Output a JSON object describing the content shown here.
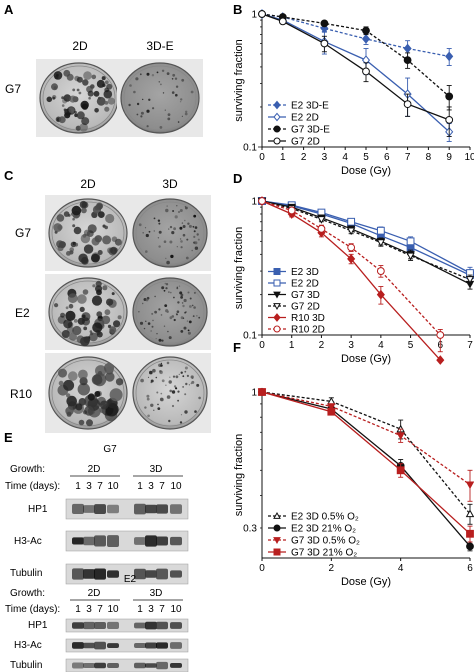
{
  "panels": {
    "A": {
      "letter": "A",
      "col_labels": [
        "2D",
        "3D-E"
      ],
      "row_labels": [
        "G7"
      ]
    },
    "C": {
      "letter": "C",
      "col_labels": [
        "2D",
        "3D"
      ],
      "row_labels": [
        "G7",
        "E2",
        "R10"
      ]
    },
    "E": {
      "letter": "E",
      "blots": [
        {
          "cell_line": "G7",
          "growth_label": "Growth:",
          "time_label": "Time (days):",
          "groups": [
            "2D",
            "3D"
          ],
          "times": [
            "1",
            "3",
            "7",
            "10",
            "1",
            "3",
            "7",
            "10"
          ],
          "proteins": [
            "HP1",
            "H3-Ac",
            "Tubulin"
          ]
        },
        {
          "cell_line": "E2",
          "growth_label": "Growth:",
          "time_label": "Time (days):",
          "groups": [
            "2D",
            "3D"
          ],
          "times": [
            "1",
            "3",
            "7",
            "10",
            "1",
            "3",
            "7",
            "10"
          ],
          "proteins": [
            "HP1",
            "H3-Ac",
            "Tubulin"
          ]
        }
      ]
    }
  },
  "chart_data": [
    {
      "panel": "B",
      "type": "line",
      "xlabel": "Dose (Gy)",
      "ylabel": "surviving fraction",
      "xlim": [
        0,
        10
      ],
      "ylim": [
        0.1,
        1
      ],
      "yscale": "log",
      "xticks": [
        0,
        1,
        2,
        3,
        4,
        5,
        6,
        7,
        8,
        9,
        10
      ],
      "yticks": [
        {
          "v": 0.1,
          "label": "0.1"
        },
        {
          "v": 1,
          "label": "1"
        }
      ],
      "legend_position": "bottom-left",
      "series": [
        {
          "name": "E2 3D-E",
          "color": "#3a5fb0",
          "marker": "diamond-filled",
          "dash": true,
          "x": [
            0,
            1,
            3,
            5,
            7,
            9
          ],
          "y": [
            1.0,
            0.95,
            0.78,
            0.65,
            0.55,
            0.48
          ],
          "err": [
            0,
            0.03,
            0.05,
            0.06,
            0.08,
            0.07
          ]
        },
        {
          "name": "E2 2D",
          "color": "#3a5fb0",
          "marker": "diamond-open",
          "dash": false,
          "x": [
            0,
            1,
            3,
            5,
            7,
            9
          ],
          "y": [
            1.0,
            0.9,
            0.62,
            0.45,
            0.25,
            0.13
          ],
          "err": [
            0,
            0.05,
            0.12,
            0.1,
            0.08,
            0.02
          ]
        },
        {
          "name": "G7 3D-E",
          "color": "#111111",
          "marker": "circle-filled",
          "dash": true,
          "x": [
            0,
            1,
            3,
            5,
            7,
            9
          ],
          "y": [
            1.0,
            0.95,
            0.85,
            0.75,
            0.45,
            0.24
          ],
          "err": [
            0,
            0.02,
            0.03,
            0.05,
            0.06,
            0.05
          ]
        },
        {
          "name": "G7 2D",
          "color": "#111111",
          "marker": "circle-open",
          "dash": false,
          "x": [
            0,
            1,
            3,
            5,
            7,
            9
          ],
          "y": [
            1.0,
            0.88,
            0.6,
            0.37,
            0.21,
            0.16
          ],
          "err": [
            0,
            0.04,
            0.08,
            0.06,
            0.04,
            0.04
          ]
        }
      ]
    },
    {
      "panel": "D",
      "type": "line",
      "xlabel": "Dose (Gy)",
      "ylabel": "surviving fraction",
      "xlim": [
        0,
        7
      ],
      "ylim": [
        0.1,
        1
      ],
      "yscale": "log",
      "xticks": [
        0,
        1,
        2,
        3,
        4,
        5,
        6,
        7
      ],
      "yticks": [
        {
          "v": 0.1,
          "label": "0.1"
        },
        {
          "v": 1,
          "label": "1"
        }
      ],
      "legend_position": "bottom-left",
      "series": [
        {
          "name": "E2 3D",
          "color": "#3a5fb0",
          "marker": "square-filled",
          "dash": false,
          "x": [
            0,
            1,
            2,
            3,
            4,
            5,
            7
          ],
          "y": [
            1.0,
            0.92,
            0.8,
            0.68,
            0.55,
            0.45,
            0.28
          ],
          "err": [
            0,
            0.02,
            0.03,
            0.03,
            0.03,
            0.03,
            0.02
          ]
        },
        {
          "name": "E2 2D",
          "color": "#3a5fb0",
          "marker": "square-open",
          "dash": false,
          "x": [
            0,
            1,
            2,
            3,
            4,
            5,
            7
          ],
          "y": [
            1.0,
            0.93,
            0.82,
            0.7,
            0.6,
            0.5,
            0.29
          ],
          "err": [
            0,
            0.03,
            0.03,
            0.04,
            0.04,
            0.04,
            0.03
          ]
        },
        {
          "name": "G7 3D",
          "color": "#111111",
          "marker": "tri-down-filled",
          "dash": false,
          "x": [
            0,
            1,
            2,
            3,
            4,
            5,
            7
          ],
          "y": [
            1.0,
            0.9,
            0.75,
            0.62,
            0.5,
            0.4,
            0.24
          ],
          "err": [
            0,
            0.02,
            0.03,
            0.03,
            0.03,
            0.03,
            0.02
          ]
        },
        {
          "name": "G7 2D",
          "color": "#111111",
          "marker": "tri-down-open",
          "dash": true,
          "x": [
            0,
            1,
            2,
            3,
            4,
            5,
            7
          ],
          "y": [
            1.0,
            0.88,
            0.73,
            0.6,
            0.49,
            0.39,
            0.26
          ],
          "err": [
            0,
            0.02,
            0.03,
            0.03,
            0.03,
            0.03,
            0.02
          ]
        },
        {
          "name": "R10 3D",
          "color": "#b81f1f",
          "marker": "diamond-filled",
          "dash": false,
          "x": [
            0,
            1,
            2,
            3,
            4,
            6
          ],
          "y": [
            1.0,
            0.8,
            0.58,
            0.37,
            0.2,
            0.065
          ],
          "err": [
            0,
            0.04,
            0.04,
            0.03,
            0.03,
            0.01
          ]
        },
        {
          "name": "R10 2D",
          "color": "#b81f1f",
          "marker": "circle-open",
          "dash": true,
          "x": [
            0,
            1,
            2,
            3,
            4,
            6
          ],
          "y": [
            1.0,
            0.85,
            0.62,
            0.45,
            0.3,
            0.1
          ],
          "err": [
            0,
            0.04,
            0.04,
            0.03,
            0.03,
            0.01
          ]
        }
      ]
    },
    {
      "panel": "F",
      "type": "line",
      "xlabel": "Dose (Gy)",
      "ylabel": "surviving fraction",
      "xlim": [
        0,
        6
      ],
      "ylim": [
        0.23,
        1
      ],
      "yscale": "log",
      "xticks": [
        0,
        2,
        4,
        6
      ],
      "yticks": [
        {
          "v": 0.3,
          "label": "0.3"
        },
        {
          "v": 1,
          "label": "1"
        }
      ],
      "legend_position": "bottom-left",
      "series": [
        {
          "name": "E2 3D 0.5% O₂",
          "color": "#111111",
          "marker": "tri-up-open",
          "dash": true,
          "x": [
            0,
            2,
            4,
            6
          ],
          "y": [
            1.0,
            0.92,
            0.72,
            0.34
          ],
          "err": [
            0,
            0.03,
            0.06,
            0.03
          ]
        },
        {
          "name": "E2 3D 21% O₂",
          "color": "#111111",
          "marker": "circle-filled",
          "dash": false,
          "x": [
            0,
            2,
            4,
            6
          ],
          "y": [
            1.0,
            0.86,
            0.52,
            0.255
          ],
          "err": [
            0,
            0.02,
            0.03,
            0.01
          ]
        },
        {
          "name": "G7 3D 0.5% O₂",
          "color": "#b81f1f",
          "marker": "tri-down-filled",
          "dash": true,
          "x": [
            0,
            2,
            4,
            6
          ],
          "y": [
            1.0,
            0.88,
            0.68,
            0.44
          ],
          "err": [
            0,
            0.02,
            0.04,
            0.06
          ]
        },
        {
          "name": "G7 3D 21% O₂",
          "color": "#b81f1f",
          "marker": "square-filled",
          "dash": false,
          "x": [
            0,
            2,
            4,
            6
          ],
          "y": [
            1.0,
            0.84,
            0.5,
            0.285
          ],
          "err": [
            0,
            0.02,
            0.03,
            0.02
          ]
        }
      ]
    }
  ]
}
